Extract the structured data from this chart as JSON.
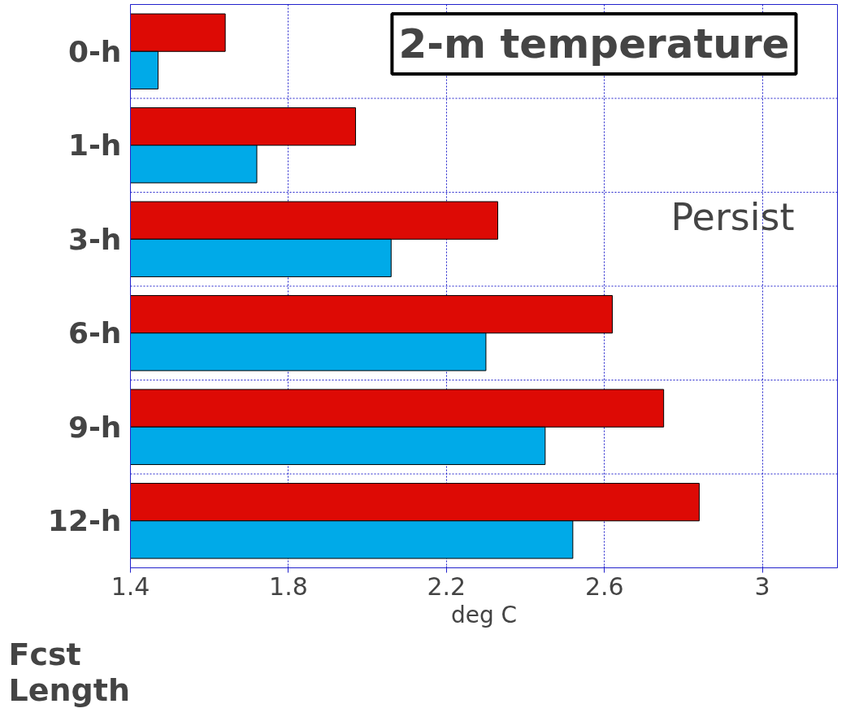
{
  "chart_data": {
    "type": "bar",
    "orientation": "horizontal",
    "title": "2-m temperature",
    "xlabel": "deg C",
    "ylabel": "Fcst Length",
    "categories": [
      "0-h",
      "1-h",
      "3-h",
      "6-h",
      "9-h",
      "12-h"
    ],
    "series": [
      {
        "color": "#dd0a05",
        "values": [
          1.64,
          1.97,
          2.33,
          2.62,
          2.75,
          2.84
        ]
      },
      {
        "color": "#00aae8",
        "values": [
          1.47,
          1.72,
          2.06,
          2.3,
          2.45,
          2.52
        ]
      }
    ],
    "xlim": [
      1.4,
      3.19
    ],
    "xticks": [
      1.4,
      1.8,
      2.2,
      2.6,
      3
    ],
    "grid": true,
    "annotations": [
      "Persist"
    ]
  }
}
